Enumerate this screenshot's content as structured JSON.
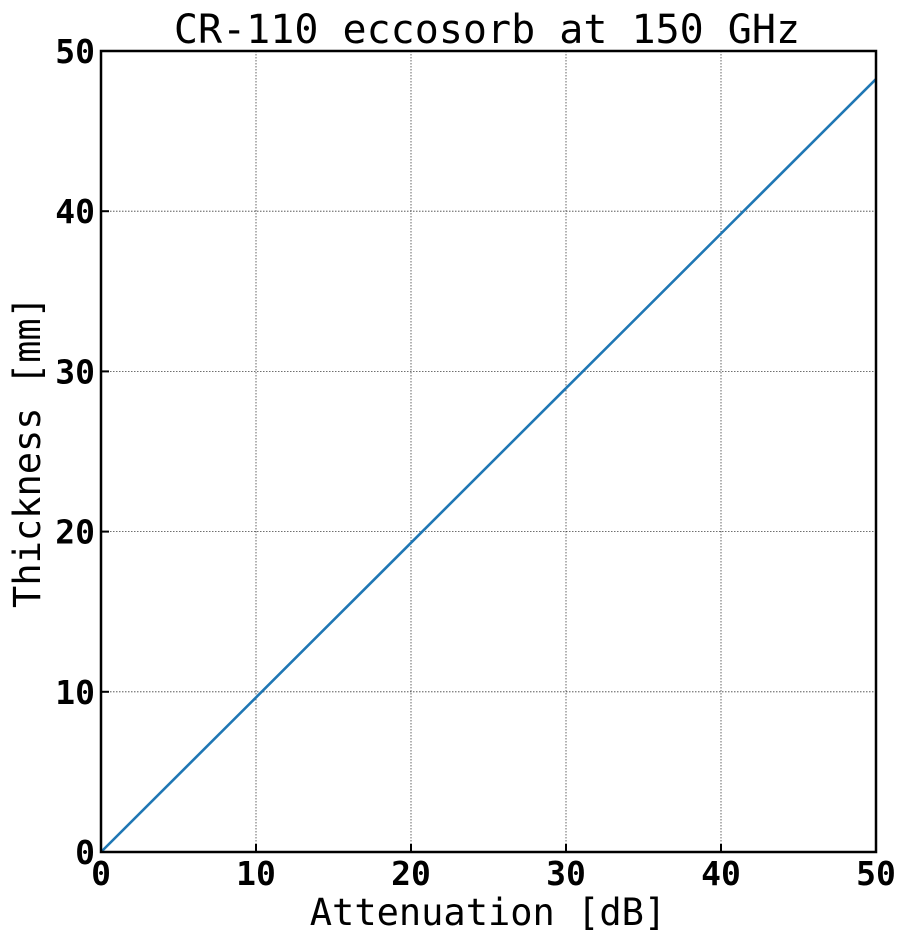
{
  "chart_data": {
    "type": "line",
    "title": "CR-110 eccosorb at 150 GHz",
    "xlabel": "Attenuation [dB]",
    "ylabel": "Thickness [mm]",
    "xlim": [
      0,
      50
    ],
    "ylim": [
      0,
      50
    ],
    "xticks": [
      0,
      10,
      20,
      30,
      40,
      50
    ],
    "yticks": [
      0,
      10,
      20,
      30,
      40,
      50
    ],
    "xtick_labels": [
      "0",
      "10",
      "20",
      "30",
      "40",
      "50"
    ],
    "ytick_labels": [
      "0",
      "10",
      "20",
      "30",
      "40",
      "50"
    ],
    "grid": true,
    "series": [
      {
        "color": "#1f77b4",
        "x": [
          0,
          10,
          20,
          30,
          40,
          50
        ],
        "y": [
          0,
          9.65,
          19.3,
          28.95,
          38.6,
          48.25
        ]
      }
    ]
  }
}
